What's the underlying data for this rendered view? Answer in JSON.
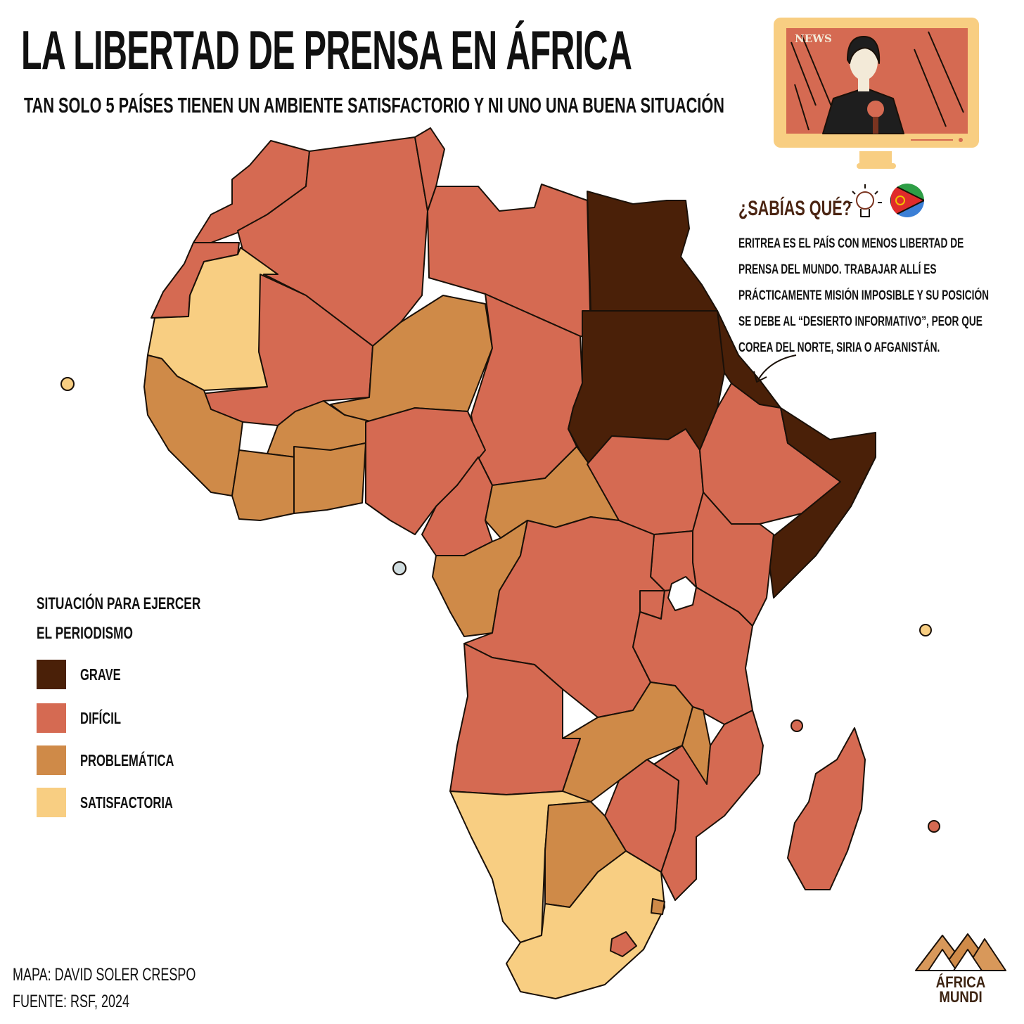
{
  "title": "LA LIBERTAD DE PRENSA EN ÁFRICA",
  "subtitle": "TAN SOLO 5 PAÍSES TIENEN UN AMBIENTE SATISFACTORIO Y NI UNO UNA BUENA SITUACIÓN",
  "tv": {
    "label": "NEWS"
  },
  "fact": {
    "heading": "¿SABÍAS QUÉ?",
    "lines": [
      "ERITREA ES EL PAÍS CON MENOS LIBERTAD DE",
      "PRENSA DEL MUNDO. TRABAJAR ALLÍ ES",
      "PRÁCTICAMENTE MISIÓN IMPOSIBLE Y SU POSICIÓN",
      "SE DEBE AL “DESIERTO INFORMATIVO”, PEOR QUE",
      "COREA DEL NORTE, SIRIA O AFGANISTÁN."
    ],
    "flag_icon": "eritrea-flag-icon",
    "idea_icon": "lightbulb-icon"
  },
  "legend": {
    "title_lines": [
      "SITUACIÓN PARA EJERCER",
      "EL PERIODISMO"
    ],
    "items": [
      {
        "label": "GRAVE",
        "color": "#4a2008"
      },
      {
        "label": "DIFÍCIL",
        "color": "#d56a52"
      },
      {
        "label": "PROBLEMÁTICA",
        "color": "#cf8a48"
      },
      {
        "label": "SATISFACTORIA",
        "color": "#f8ce82"
      }
    ]
  },
  "credits": {
    "map": "MAPA: DAVID SOLER CRESPO",
    "source": "FUENTE: RSF, 2024"
  },
  "brand": {
    "line1": "ÁFRICA",
    "line2": "MUNDI"
  },
  "categories": {
    "grave": [
      "Egipto",
      "Sudán",
      "Eritrea",
      "Somalia"
    ],
    "satisfactoria": [
      "Mauritania",
      "Namibia",
      "Sudáfrica",
      "Cabo Verde",
      "Seychelles"
    ]
  }
}
